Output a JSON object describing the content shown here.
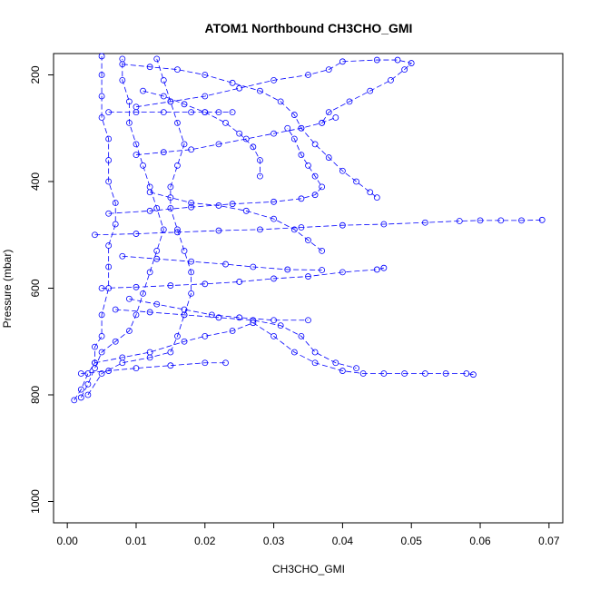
{
  "chart_data": {
    "type": "scatter",
    "title": "ATOM1 Northbound CH3CHO_GMI",
    "xlabel": "CH3CHO_GMI",
    "ylabel": "Pressure (mbar)",
    "xlim": [
      -0.002,
      0.072
    ],
    "ylim": [
      1040,
      160
    ],
    "y_reversed": true,
    "x_ticks": [
      0.0,
      0.01,
      0.02,
      0.03,
      0.04,
      0.05,
      0.06,
      0.07
    ],
    "x_tick_labels": [
      "0.00",
      "0.01",
      "0.02",
      "0.03",
      "0.04",
      "0.05",
      "0.06",
      "0.07"
    ],
    "y_ticks": [
      200,
      400,
      600,
      800,
      1000
    ],
    "y_tick_labels": [
      "200",
      "400",
      "600",
      "800",
      "1000"
    ],
    "series_color": "#0000ff",
    "marker": "open-circle",
    "line_style": "dashed-connecting",
    "grid": false,
    "legend": "none",
    "series": [
      {
        "points": [
          [
            0.001,
            810
          ],
          [
            0.002,
            790
          ],
          [
            0.003,
            760
          ],
          [
            0.004,
            740
          ],
          [
            0.004,
            710
          ],
          [
            0.005,
            690
          ],
          [
            0.005,
            650
          ],
          [
            0.006,
            600
          ],
          [
            0.006,
            560
          ],
          [
            0.006,
            520
          ],
          [
            0.007,
            480
          ],
          [
            0.007,
            440
          ],
          [
            0.006,
            400
          ],
          [
            0.006,
            360
          ],
          [
            0.006,
            320
          ],
          [
            0.005,
            280
          ],
          [
            0.005,
            240
          ],
          [
            0.005,
            200
          ],
          [
            0.005,
            165
          ]
        ]
      },
      {
        "points": [
          [
            0.002,
            805
          ],
          [
            0.003,
            780
          ],
          [
            0.004,
            750
          ],
          [
            0.005,
            720
          ],
          [
            0.007,
            700
          ],
          [
            0.009,
            680
          ],
          [
            0.01,
            650
          ],
          [
            0.011,
            610
          ],
          [
            0.012,
            570
          ],
          [
            0.013,
            530
          ],
          [
            0.014,
            490
          ],
          [
            0.013,
            450
          ],
          [
            0.012,
            410
          ],
          [
            0.011,
            370
          ],
          [
            0.01,
            330
          ],
          [
            0.009,
            290
          ],
          [
            0.009,
            250
          ],
          [
            0.008,
            210
          ],
          [
            0.008,
            170
          ]
        ]
      },
      {
        "points": [
          [
            0.003,
            800
          ],
          [
            0.005,
            760
          ],
          [
            0.008,
            740
          ],
          [
            0.012,
            730
          ],
          [
            0.015,
            720
          ],
          [
            0.016,
            690
          ],
          [
            0.017,
            650
          ],
          [
            0.018,
            610
          ],
          [
            0.018,
            570
          ],
          [
            0.017,
            530
          ],
          [
            0.016,
            490
          ],
          [
            0.015,
            450
          ],
          [
            0.015,
            410
          ],
          [
            0.016,
            370
          ],
          [
            0.017,
            330
          ],
          [
            0.016,
            290
          ],
          [
            0.015,
            250
          ],
          [
            0.014,
            210
          ],
          [
            0.013,
            170
          ]
        ]
      },
      {
        "points": [
          [
            0.002,
            760
          ],
          [
            0.006,
            755
          ],
          [
            0.01,
            750
          ],
          [
            0.015,
            745
          ],
          [
            0.02,
            740
          ],
          [
            0.023,
            740
          ]
        ]
      },
      {
        "points": [
          [
            0.004,
            740
          ],
          [
            0.008,
            730
          ],
          [
            0.012,
            720
          ],
          [
            0.017,
            700
          ],
          [
            0.02,
            690
          ],
          [
            0.024,
            680
          ],
          [
            0.027,
            665
          ],
          [
            0.03,
            690
          ],
          [
            0.033,
            720
          ],
          [
            0.036,
            740
          ],
          [
            0.04,
            755
          ],
          [
            0.043,
            760
          ],
          [
            0.046,
            760
          ],
          [
            0.049,
            760
          ],
          [
            0.052,
            760
          ],
          [
            0.055,
            760
          ],
          [
            0.058,
            760
          ],
          [
            0.059,
            762
          ]
        ]
      },
      {
        "points": [
          [
            0.005,
            600
          ],
          [
            0.01,
            598
          ],
          [
            0.015,
            595
          ],
          [
            0.02,
            592
          ],
          [
            0.025,
            588
          ],
          [
            0.03,
            582
          ],
          [
            0.035,
            578
          ],
          [
            0.04,
            570
          ],
          [
            0.045,
            565
          ],
          [
            0.046,
            562
          ]
        ]
      },
      {
        "points": [
          [
            0.004,
            500
          ],
          [
            0.01,
            498
          ],
          [
            0.016,
            495
          ],
          [
            0.022,
            492
          ],
          [
            0.028,
            490
          ],
          [
            0.034,
            486
          ],
          [
            0.04,
            482
          ],
          [
            0.046,
            480
          ],
          [
            0.052,
            477
          ],
          [
            0.057,
            474
          ],
          [
            0.06,
            473
          ],
          [
            0.063,
            473
          ],
          [
            0.066,
            473
          ],
          [
            0.069,
            472
          ]
        ]
      },
      {
        "points": [
          [
            0.006,
            460
          ],
          [
            0.012,
            455
          ],
          [
            0.018,
            448
          ],
          [
            0.024,
            442
          ],
          [
            0.03,
            438
          ],
          [
            0.034,
            432
          ],
          [
            0.036,
            425
          ],
          [
            0.037,
            410
          ],
          [
            0.036,
            390
          ],
          [
            0.035,
            370
          ],
          [
            0.034,
            350
          ],
          [
            0.033,
            320
          ],
          [
            0.032,
            300
          ]
        ]
      },
      {
        "points": [
          [
            0.006,
            270
          ],
          [
            0.01,
            270
          ],
          [
            0.014,
            270
          ],
          [
            0.018,
            270
          ],
          [
            0.02,
            270
          ],
          [
            0.022,
            270
          ],
          [
            0.024,
            270
          ]
        ]
      },
      {
        "points": [
          [
            0.01,
            260
          ],
          [
            0.015,
            250
          ],
          [
            0.02,
            240
          ],
          [
            0.025,
            225
          ],
          [
            0.03,
            210
          ],
          [
            0.035,
            200
          ],
          [
            0.038,
            190
          ],
          [
            0.04,
            175
          ],
          [
            0.045,
            172
          ],
          [
            0.048,
            172
          ],
          [
            0.05,
            178
          ],
          [
            0.049,
            190
          ],
          [
            0.047,
            210
          ],
          [
            0.044,
            230
          ],
          [
            0.041,
            250
          ],
          [
            0.038,
            270
          ],
          [
            0.037,
            290
          ]
        ]
      },
      {
        "points": [
          [
            0.008,
            180
          ],
          [
            0.012,
            185
          ],
          [
            0.016,
            190
          ],
          [
            0.02,
            200
          ],
          [
            0.024,
            215
          ],
          [
            0.028,
            230
          ],
          [
            0.031,
            250
          ],
          [
            0.033,
            275
          ],
          [
            0.034,
            300
          ],
          [
            0.036,
            330
          ],
          [
            0.038,
            355
          ],
          [
            0.04,
            380
          ],
          [
            0.042,
            400
          ],
          [
            0.044,
            420
          ],
          [
            0.045,
            430
          ]
        ]
      },
      {
        "points": [
          [
            0.007,
            640
          ],
          [
            0.012,
            645
          ],
          [
            0.017,
            650
          ],
          [
            0.022,
            655
          ],
          [
            0.027,
            660
          ],
          [
            0.031,
            670
          ],
          [
            0.034,
            690
          ],
          [
            0.036,
            720
          ],
          [
            0.039,
            740
          ],
          [
            0.042,
            750
          ]
        ]
      },
      {
        "points": [
          [
            0.008,
            540
          ],
          [
            0.013,
            545
          ],
          [
            0.018,
            550
          ],
          [
            0.023,
            555
          ],
          [
            0.027,
            560
          ],
          [
            0.032,
            565
          ],
          [
            0.037,
            566
          ]
        ]
      },
      {
        "points": [
          [
            0.009,
            620
          ],
          [
            0.013,
            630
          ],
          [
            0.017,
            640
          ],
          [
            0.021,
            650
          ],
          [
            0.025,
            655
          ],
          [
            0.03,
            660
          ],
          [
            0.035,
            660
          ]
        ]
      },
      {
        "points": [
          [
            0.01,
            350
          ],
          [
            0.014,
            345
          ],
          [
            0.018,
            340
          ],
          [
            0.022,
            330
          ],
          [
            0.026,
            320
          ],
          [
            0.03,
            310
          ],
          [
            0.034,
            300
          ],
          [
            0.037,
            290
          ],
          [
            0.039,
            280
          ]
        ]
      },
      {
        "points": [
          [
            0.011,
            230
          ],
          [
            0.014,
            240
          ],
          [
            0.017,
            255
          ],
          [
            0.02,
            270
          ],
          [
            0.023,
            290
          ],
          [
            0.025,
            310
          ],
          [
            0.027,
            335
          ],
          [
            0.028,
            360
          ],
          [
            0.028,
            390
          ]
        ]
      },
      {
        "points": [
          [
            0.012,
            420
          ],
          [
            0.015,
            430
          ],
          [
            0.018,
            440
          ],
          [
            0.022,
            445
          ],
          [
            0.026,
            455
          ],
          [
            0.03,
            470
          ],
          [
            0.033,
            490
          ],
          [
            0.035,
            510
          ],
          [
            0.037,
            530
          ]
        ]
      }
    ]
  }
}
